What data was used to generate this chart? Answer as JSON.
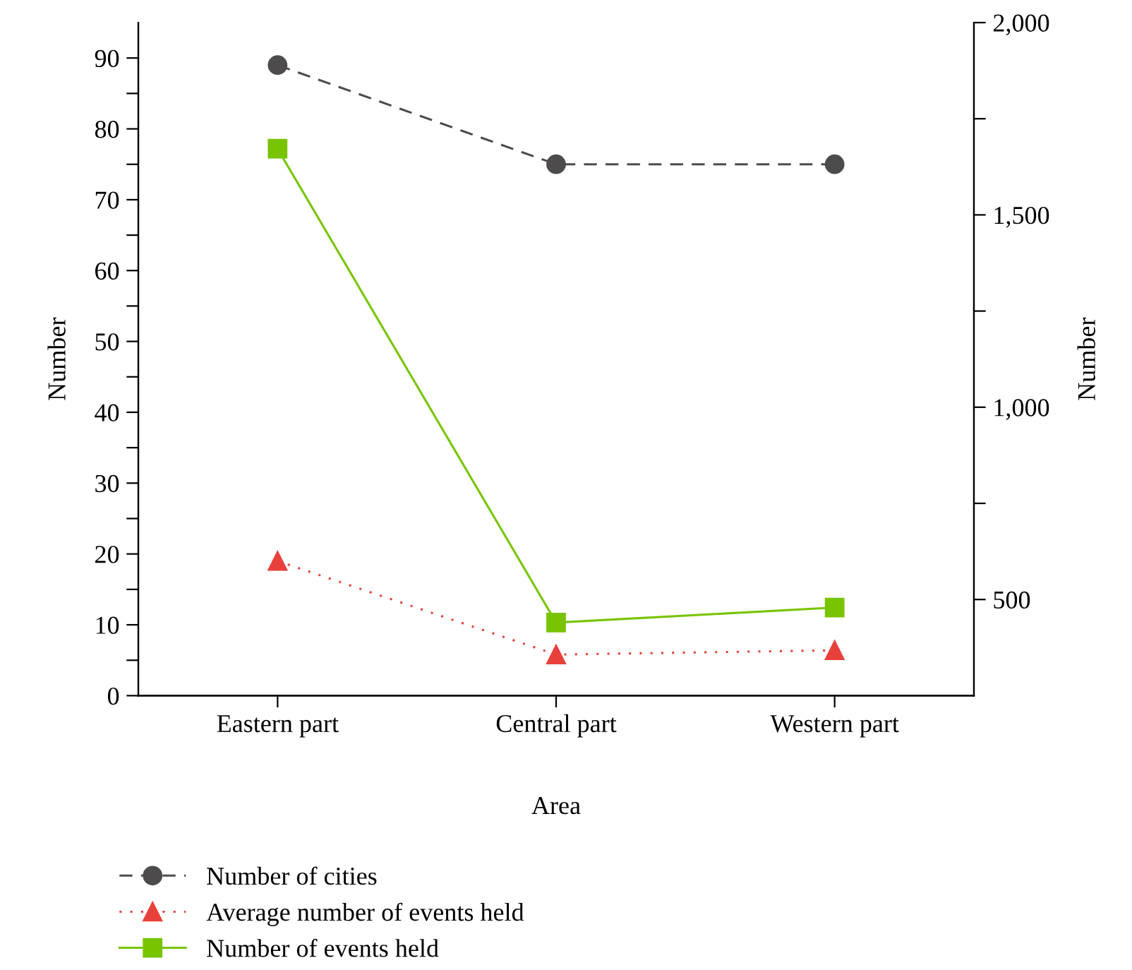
{
  "chart_data": {
    "type": "line",
    "xlabel": "Area",
    "ylabel": "Number",
    "y2label": "Number",
    "categories": [
      "Eastern part",
      "Central part",
      "Western part"
    ],
    "series": [
      {
        "name": "Number of cities",
        "color": "#4d4b4b",
        "values": [
          89,
          75,
          75
        ],
        "marker": "circle",
        "line_style": "dashed"
      },
      {
        "name": "Average number of events held",
        "color": "#e8413c",
        "values": [
          19,
          5.8,
          6.4
        ],
        "marker": "triangle",
        "line_style": "dotted"
      },
      {
        "name": "Number of events held",
        "color": "#78c400",
        "values": [
          1672,
          440,
          479
        ],
        "marker": "square",
        "line_style": "solid",
        "axis": "y2"
      }
    ],
    "ylim": [
      0,
      95
    ],
    "yticks": [
      0,
      {
        "value": 5,
        "label": null
      },
      10,
      {
        "value": 15,
        "label": null
      },
      20,
      {
        "value": 25,
        "label": null
      },
      30,
      {
        "value": 35,
        "label": null
      },
      40,
      {
        "value": 45,
        "label": null
      },
      50,
      {
        "value": 55,
        "label": null
      },
      60,
      {
        "value": 65,
        "label": null
      },
      70,
      {
        "value": 75,
        "label": null
      },
      80,
      {
        "value": 85,
        "label": null
      },
      90
    ],
    "y2lim": [
      250,
      2000
    ],
    "y2ticks": [
      {
        "value": 500,
        "label": "500"
      },
      {
        "value": 750,
        "label": null
      },
      {
        "value": 1000,
        "label": "1,000"
      },
      {
        "value": 1250,
        "label": null
      },
      {
        "value": 1500,
        "label": "1,500"
      },
      {
        "value": 1750,
        "label": null
      },
      {
        "value": 2000,
        "label": "2,000"
      }
    ],
    "grid": false,
    "legend": "bottom"
  }
}
